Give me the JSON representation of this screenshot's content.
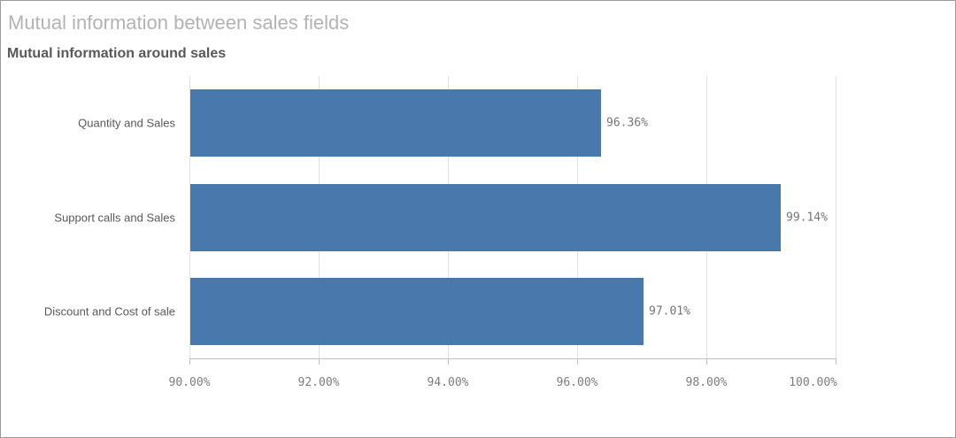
{
  "widget": {
    "title": "Mutual information between sales fields",
    "subtitle": "Mutual information around sales"
  },
  "colors": {
    "bar": "#4878ac",
    "gridline": "#e2e2e2",
    "axis": "#c0c0c0",
    "title_text": "#b3b3b3",
    "subtitle_text": "#595959",
    "category_text": "#595959",
    "value_text": "#757575",
    "tick_text": "#7d7d7d",
    "widget_border": "#9b9b9b"
  },
  "chart_data": {
    "type": "bar",
    "orientation": "horizontal",
    "title": "Mutual information around sales",
    "categories": [
      "Quantity and Sales",
      "Support calls and Sales",
      "Discount and Cost of sale"
    ],
    "values": [
      96.36,
      99.14,
      97.01
    ],
    "value_labels": [
      "96.36%",
      "99.14%",
      "97.01%"
    ],
    "xlabel": "",
    "ylabel": "",
    "xlim": [
      90,
      100
    ],
    "x_ticks": [
      90,
      92,
      94,
      96,
      98,
      100
    ],
    "x_tick_labels": [
      "90.00%",
      "92.00%",
      "94.00%",
      "96.00%",
      "98.00%",
      "100.00%"
    ],
    "grid": true,
    "legend": false
  }
}
